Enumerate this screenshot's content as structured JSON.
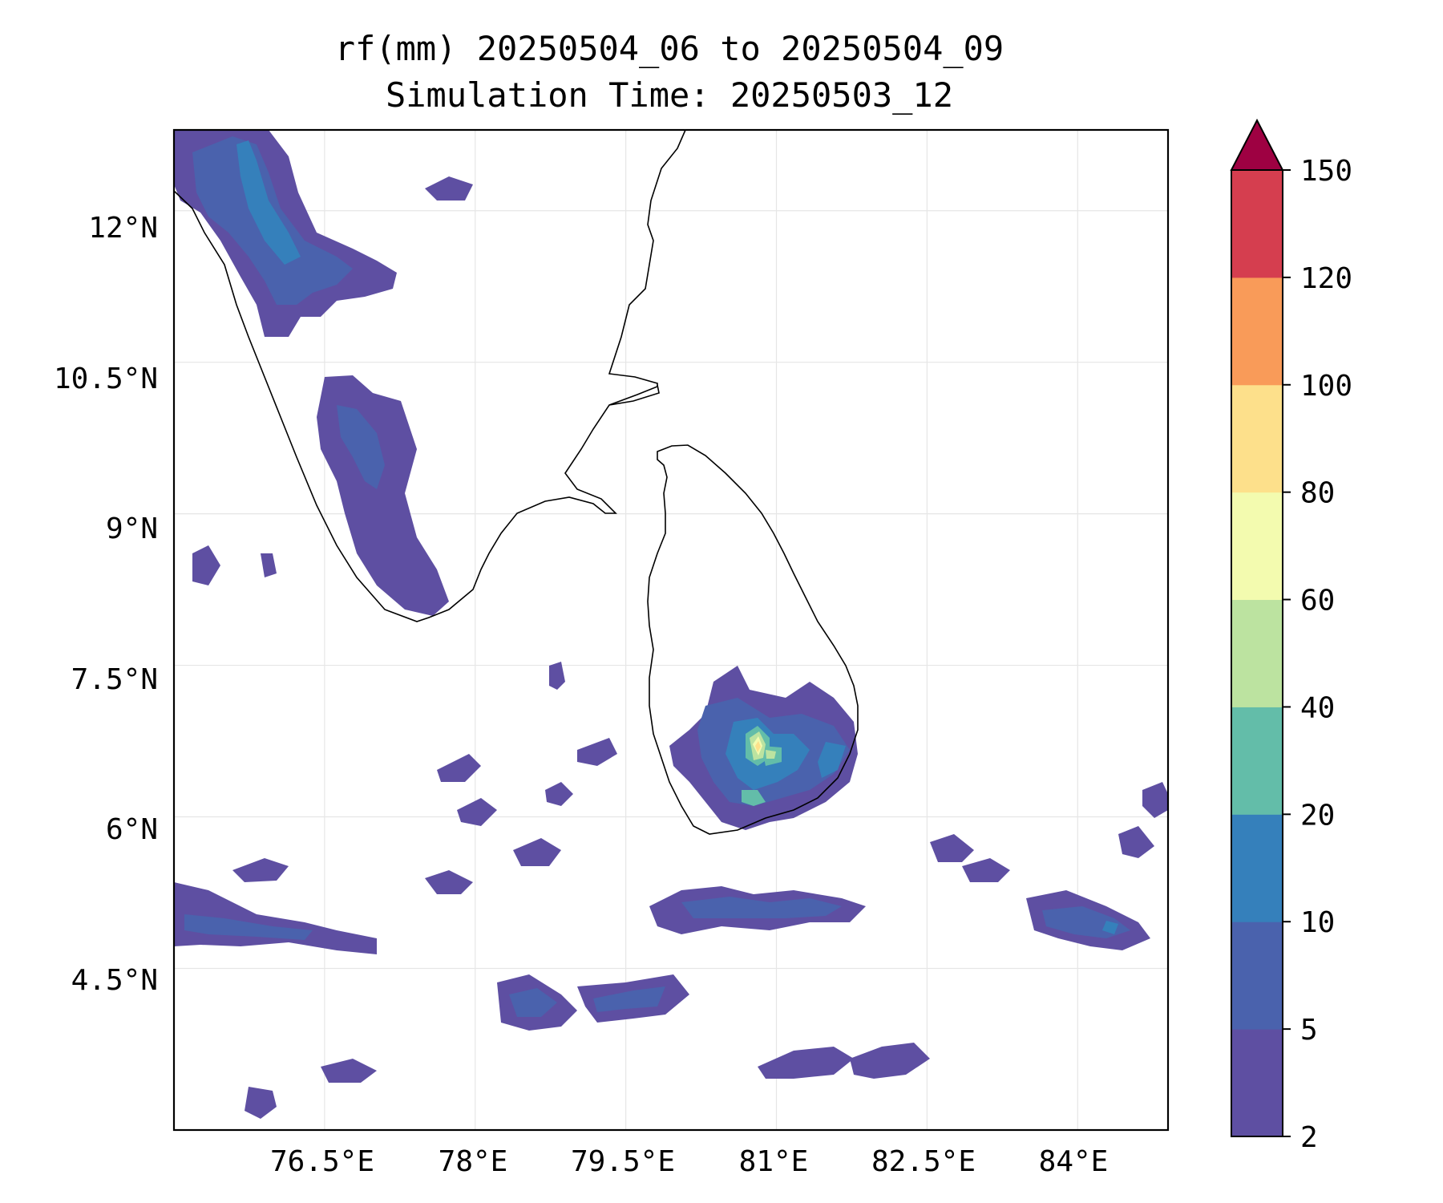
{
  "title_line1": "rf(mm) 20250504_06 to 20250504_09",
  "title_line2": "Simulation Time: 20250503_12",
  "map": {
    "lon_range": [
      75.0,
      84.9
    ],
    "lat_range": [
      2.9,
      12.8
    ],
    "lon_ticks": [
      "76.5°E",
      "78°E",
      "79.5°E",
      "81°E",
      "82.5°E",
      "84°E"
    ],
    "lon_tick_values": [
      76.5,
      78.0,
      79.5,
      81.0,
      82.5,
      84.0
    ],
    "lat_ticks": [
      "12°N",
      "10.5°N",
      "9°N",
      "7.5°N",
      "6°N",
      "4.5°N"
    ],
    "lat_tick_values": [
      12.0,
      10.5,
      9.0,
      7.5,
      6.0,
      4.5
    ],
    "coastline_color": "#000000",
    "gridlines": true
  },
  "colorbar": {
    "tick_labels": [
      "2",
      "5",
      "10",
      "20",
      "40",
      "60",
      "80",
      "100",
      "120",
      "150"
    ],
    "colors": [
      "#5e4fa2",
      "#4a62ad",
      "#3580bb",
      "#63bda9",
      "#bce3a0",
      "#f3fbaf",
      "#fde08b",
      "#f99b59",
      "#d53e4f"
    ],
    "extend_color": "#9e0142",
    "extend": "max"
  }
}
